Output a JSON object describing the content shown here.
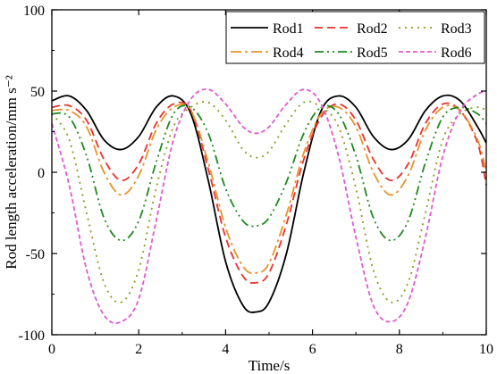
{
  "chart_data": {
    "type": "line",
    "title": "",
    "xlabel": "Time/s",
    "ylabel": "Rod length acceleration/mm s⁻²",
    "xlim": [
      0,
      10
    ],
    "ylim": [
      -100,
      100
    ],
    "xticks": [
      0,
      2,
      4,
      6,
      8,
      10
    ],
    "yticks": [
      -100,
      -50,
      0,
      50,
      100
    ],
    "grid": false,
    "legend_position": "top-right",
    "series": [
      {
        "name": "Rod1",
        "color": "#000000",
        "dash": "solid",
        "x": [
          0,
          0.4,
          0.8,
          1.2,
          1.6,
          2.0,
          2.4,
          2.8,
          3.2,
          3.6,
          4.0,
          4.4,
          4.7,
          5.0,
          5.4,
          5.8,
          6.2,
          6.6,
          7.0,
          7.4,
          7.8,
          8.2,
          8.6,
          9.0,
          9.4,
          9.8,
          10.0
        ],
        "y": [
          44,
          47,
          38,
          20,
          14,
          22,
          40,
          47,
          36,
          -5,
          -55,
          -82,
          -86,
          -80,
          -50,
          0,
          38,
          47,
          40,
          22,
          14,
          20,
          38,
          47,
          44,
          28,
          18
        ]
      },
      {
        "name": "Rod2",
        "color": "#e8322b",
        "dash": "9,5",
        "x": [
          0,
          0.4,
          0.8,
          1.2,
          1.6,
          2.0,
          2.4,
          2.8,
          3.2,
          3.6,
          4.0,
          4.4,
          4.7,
          5.0,
          5.4,
          5.8,
          6.2,
          6.6,
          7.0,
          7.4,
          7.8,
          8.2,
          8.6,
          9.0,
          9.4,
          9.8,
          10.0
        ],
        "y": [
          40,
          41,
          32,
          8,
          -5,
          5,
          30,
          42,
          38,
          2,
          -40,
          -64,
          -68,
          -62,
          -32,
          8,
          34,
          42,
          32,
          8,
          -5,
          5,
          30,
          42,
          38,
          18,
          -8
        ]
      },
      {
        "name": "Rod3",
        "color": "#8b9a1c",
        "dash": "2,5",
        "x": [
          0,
          0.4,
          0.8,
          1.2,
          1.6,
          2.0,
          2.4,
          2.8,
          3.2,
          3.6,
          4.0,
          4.4,
          4.7,
          5.0,
          5.4,
          5.8,
          6.2,
          6.6,
          7.0,
          7.4,
          7.8,
          8.2,
          8.6,
          9.0,
          9.4,
          9.8,
          10.0
        ],
        "y": [
          36,
          20,
          -25,
          -68,
          -80,
          -60,
          -10,
          28,
          40,
          43,
          32,
          14,
          9,
          13,
          30,
          43,
          40,
          28,
          -10,
          -60,
          -80,
          -68,
          -25,
          20,
          36,
          40,
          38
        ]
      },
      {
        "name": "Rod4",
        "color": "#e8922b",
        "dash": "12,4,3,4",
        "x": [
          0,
          0.4,
          0.8,
          1.2,
          1.6,
          2.0,
          2.4,
          2.8,
          3.2,
          3.6,
          4.0,
          4.4,
          4.7,
          5.0,
          5.4,
          5.8,
          6.2,
          6.6,
          7.0,
          7.4,
          7.8,
          8.2,
          8.6,
          9.0,
          9.4,
          9.8,
          10.0
        ],
        "y": [
          38,
          38,
          28,
          0,
          -14,
          -2,
          26,
          40,
          38,
          6,
          -34,
          -58,
          -62,
          -56,
          -26,
          12,
          36,
          40,
          28,
          0,
          -14,
          -2,
          26,
          40,
          38,
          20,
          0
        ]
      },
      {
        "name": "Rod5",
        "color": "#1e8a1e",
        "dash": "10,4,2,4,2,4",
        "x": [
          0,
          0.4,
          0.8,
          1.2,
          1.6,
          2.0,
          2.4,
          2.8,
          3.2,
          3.6,
          4.0,
          4.4,
          4.7,
          5.0,
          5.4,
          5.8,
          6.2,
          6.6,
          7.0,
          7.4,
          7.8,
          8.2,
          8.6,
          9.0,
          9.4,
          9.8,
          10.0
        ],
        "y": [
          36,
          34,
          10,
          -28,
          -42,
          -30,
          6,
          36,
          40,
          24,
          -10,
          -30,
          -33,
          -28,
          -6,
          24,
          40,
          36,
          10,
          -28,
          -42,
          -30,
          6,
          34,
          40,
          36,
          30
        ]
      },
      {
        "name": "Rod6",
        "color": "#e05ad0",
        "dash": "5,3",
        "x": [
          0,
          0.4,
          0.8,
          1.2,
          1.6,
          2.0,
          2.4,
          2.8,
          3.2,
          3.6,
          4.0,
          4.4,
          4.7,
          5.0,
          5.4,
          5.8,
          6.2,
          6.6,
          7.0,
          7.4,
          7.8,
          8.2,
          8.6,
          9.0,
          9.4,
          9.8,
          10.0
        ],
        "y": [
          30,
          -8,
          -60,
          -88,
          -92,
          -78,
          -30,
          20,
          45,
          51,
          42,
          28,
          24,
          28,
          42,
          51,
          42,
          10,
          -40,
          -82,
          -92,
          -80,
          -40,
          10,
          38,
          48,
          50
        ]
      }
    ]
  }
}
